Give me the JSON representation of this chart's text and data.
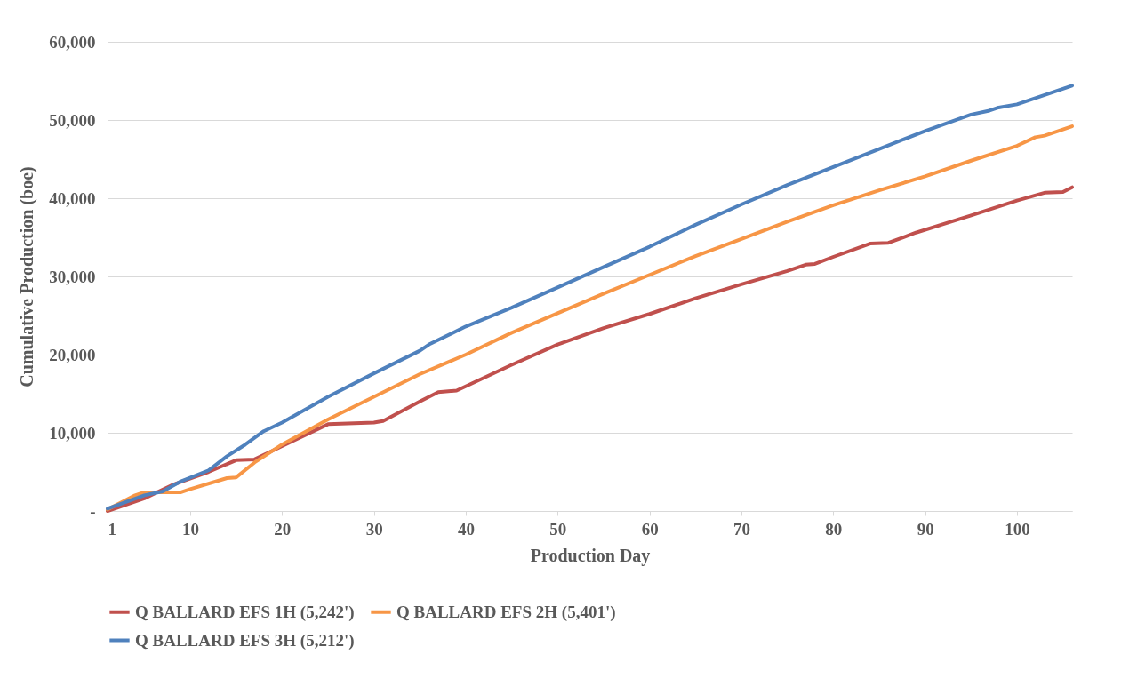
{
  "chart_data": {
    "type": "line",
    "xlabel": "Production Day",
    "ylabel": "Cumulative Production (boe)",
    "xlim": [
      1,
      106
    ],
    "xticks": [
      1,
      10,
      20,
      30,
      40,
      50,
      60,
      70,
      80,
      90,
      100
    ],
    "ylim": [
      0,
      60000
    ],
    "yticks": [
      {
        "value": 0,
        "label": "-"
      },
      {
        "value": 10000,
        "label": "10,000"
      },
      {
        "value": 20000,
        "label": "20,000"
      },
      {
        "value": 30000,
        "label": "30,000"
      },
      {
        "value": 40000,
        "label": "40,000"
      },
      {
        "value": 50000,
        "label": "50,000"
      },
      {
        "value": 60000,
        "label": "60,000"
      }
    ],
    "grid": "y",
    "legend": "bottom",
    "series": [
      {
        "name": "Q BALLARD EFS 1H (5,242')",
        "color": "#c0504d",
        "x": [
          1,
          5,
          8,
          12,
          15,
          17,
          20,
          25,
          30,
          31,
          35,
          37,
          39,
          45,
          50,
          55,
          60,
          65,
          70,
          75,
          77,
          78,
          80,
          84,
          86,
          89,
          95,
          100,
          103,
          105,
          106
        ],
        "values": [
          0,
          1600,
          3300,
          5000,
          6500,
          6600,
          8300,
          11100,
          11300,
          11500,
          14000,
          15200,
          15400,
          18700,
          21300,
          23400,
          25200,
          27200,
          29000,
          30700,
          31500,
          31600,
          32500,
          34200,
          34300,
          35600,
          37800,
          39700,
          40700,
          40800,
          41400
        ]
      },
      {
        "name": "Q BALLARD EFS 2H (5,401')",
        "color": "#f79646",
        "x": [
          1,
          4,
          5,
          7,
          9,
          10,
          14,
          15,
          17,
          20,
          25,
          30,
          35,
          40,
          45,
          50,
          55,
          60,
          65,
          70,
          75,
          80,
          85,
          90,
          95,
          100,
          102,
          103,
          106
        ],
        "values": [
          200,
          2000,
          2400,
          2400,
          2400,
          2800,
          4200,
          4300,
          6200,
          8500,
          11700,
          14600,
          17500,
          20000,
          22800,
          25300,
          27800,
          30200,
          32600,
          34800,
          37000,
          39100,
          41000,
          42800,
          44800,
          46700,
          47800,
          48000,
          49200
        ]
      },
      {
        "name": "Q BALLARD EFS 3H (5,212')",
        "color": "#4f81bd",
        "x": [
          1,
          5,
          7,
          9,
          12,
          14,
          16,
          18,
          20,
          25,
          30,
          35,
          36,
          40,
          45,
          50,
          55,
          60,
          65,
          70,
          75,
          80,
          85,
          90,
          95,
          97,
          98,
          100,
          106
        ],
        "values": [
          300,
          2000,
          2500,
          3800,
          5200,
          7000,
          8500,
          10200,
          11300,
          14600,
          17600,
          20500,
          21300,
          23600,
          26000,
          28600,
          31200,
          33800,
          36600,
          39200,
          41700,
          44000,
          46300,
          48600,
          50700,
          51200,
          51600,
          52000,
          54400
        ]
      }
    ]
  }
}
